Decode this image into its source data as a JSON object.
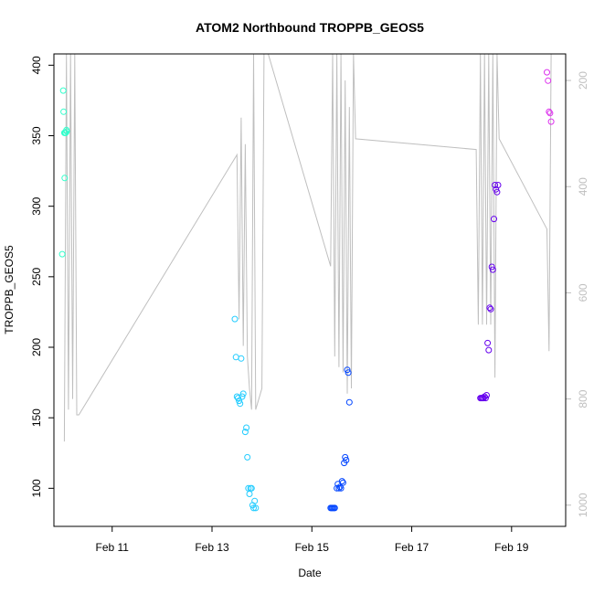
{
  "chart_data": {
    "type": "scatter",
    "title": "ATOM2 Northbound TROPPB_GEOS5",
    "xlabel": "Date",
    "ylabel": "TROPPB_GEOS5",
    "x_unit": "days",
    "xlim": [
      "2016-02-09T20:00",
      "2016-02-20T02:00"
    ],
    "ylim": [
      73,
      408
    ],
    "x_ticks": [
      {
        "x": "2016-02-11",
        "label": "Feb 11"
      },
      {
        "x": "2016-02-13",
        "label": "Feb 13"
      },
      {
        "x": "2016-02-15",
        "label": "Feb 15"
      },
      {
        "x": "2016-02-17",
        "label": "Feb 17"
      },
      {
        "x": "2016-02-19",
        "label": "Feb 19"
      }
    ],
    "y_ticks": [
      100,
      150,
      200,
      250,
      300,
      350,
      400
    ],
    "right_axis": {
      "color": "#bfbfbf",
      "reversed": true,
      "lim": [
        1040,
        150
      ],
      "ticks": [
        200,
        400,
        600,
        800,
        1000
      ]
    },
    "altitude_trace": {
      "color": "#bfbfbf",
      "points": [
        [
          "2016-02-10T01:00",
          880
        ],
        [
          "2016-02-10T02:00",
          150
        ],
        [
          "2016-02-10T03:00",
          820
        ],
        [
          "2016-02-10T04:00",
          150
        ],
        [
          "2016-02-10T05:00",
          800
        ],
        [
          "2016-02-10T06:00",
          150
        ],
        [
          "2016-02-10T07:00",
          830
        ],
        [
          "2016-02-10T08:00",
          830
        ],
        [
          "2016-02-13T12:00",
          340
        ],
        [
          "2016-02-13T13:00",
          650
        ],
        [
          "2016-02-13T14:00",
          270
        ],
        [
          "2016-02-13T15:00",
          700
        ],
        [
          "2016-02-13T16:00",
          320
        ],
        [
          "2016-02-13T17:00",
          720
        ],
        [
          "2016-02-13T18:00",
          780
        ],
        [
          "2016-02-13T19:00",
          820
        ],
        [
          "2016-02-13T20:00",
          150
        ],
        [
          "2016-02-13T21:00",
          820
        ],
        [
          "2016-02-14T00:00",
          780
        ],
        [
          "2016-02-14T01:00",
          150
        ],
        [
          "2016-02-14T03:00",
          150
        ],
        [
          "2016-02-15T09:00",
          550
        ],
        [
          "2016-02-15T10:00",
          150
        ],
        [
          "2016-02-15T11:00",
          720
        ],
        [
          "2016-02-15T12:00",
          150
        ],
        [
          "2016-02-15T13:00",
          740
        ],
        [
          "2016-02-15T14:00",
          150
        ],
        [
          "2016-02-15T15:00",
          750
        ],
        [
          "2016-02-15T16:00",
          200
        ],
        [
          "2016-02-15T17:00",
          790
        ],
        [
          "2016-02-15T18:00",
          250
        ],
        [
          "2016-02-15T19:00",
          780
        ],
        [
          "2016-02-15T20:00",
          150
        ],
        [
          "2016-02-15T21:00",
          310
        ],
        [
          "2016-02-18T07:00",
          330
        ],
        [
          "2016-02-18T08:00",
          660
        ],
        [
          "2016-02-18T09:00",
          150
        ],
        [
          "2016-02-18T10:00",
          660
        ],
        [
          "2016-02-18T11:00",
          150
        ],
        [
          "2016-02-18T12:00",
          660
        ],
        [
          "2016-02-18T13:00",
          150
        ],
        [
          "2016-02-18T14:00",
          660
        ],
        [
          "2016-02-18T15:00",
          150
        ],
        [
          "2016-02-18T16:00",
          760
        ],
        [
          "2016-02-18T17:00",
          150
        ],
        [
          "2016-02-18T18:00",
          310
        ],
        [
          "2016-02-19T17:00",
          480
        ],
        [
          "2016-02-19T18:00",
          710
        ],
        [
          "2016-02-19T19:00",
          150
        ]
      ]
    },
    "series": [
      {
        "color": "#33ffcc",
        "points": [
          [
            "2016-02-10T00:00",
            266
          ],
          [
            "2016-02-10T00:30",
            382
          ],
          [
            "2016-02-10T00:40",
            367
          ],
          [
            "2016-02-10T01:00",
            352
          ],
          [
            "2016-02-10T01:10",
            320
          ],
          [
            "2016-02-10T01:20",
            352
          ],
          [
            "2016-02-10T01:30",
            352
          ],
          [
            "2016-02-10T01:40",
            352
          ],
          [
            "2016-02-10T02:00",
            354
          ],
          [
            "2016-02-10T02:10",
            353
          ]
        ]
      },
      {
        "color": "#22ccff",
        "points": [
          [
            "2016-02-13T11:00",
            220
          ],
          [
            "2016-02-13T11:30",
            193
          ],
          [
            "2016-02-13T12:00",
            165
          ],
          [
            "2016-02-13T12:30",
            164
          ],
          [
            "2016-02-13T13:00",
            162
          ],
          [
            "2016-02-13T13:30",
            160
          ],
          [
            "2016-02-13T14:00",
            192
          ],
          [
            "2016-02-13T14:30",
            165
          ],
          [
            "2016-02-13T15:00",
            167
          ],
          [
            "2016-02-13T16:00",
            140
          ],
          [
            "2016-02-13T16:30",
            143
          ],
          [
            "2016-02-13T17:00",
            122
          ],
          [
            "2016-02-13T17:30",
            100
          ],
          [
            "2016-02-13T18:00",
            96
          ],
          [
            "2016-02-13T18:30",
            100
          ],
          [
            "2016-02-13T19:00",
            100
          ],
          [
            "2016-02-13T19:30",
            88
          ],
          [
            "2016-02-13T20:00",
            86
          ],
          [
            "2016-02-13T20:30",
            91
          ],
          [
            "2016-02-13T21:00",
            86
          ]
        ]
      },
      {
        "color": "#0044ff",
        "points": [
          [
            "2016-02-15T09:00",
            86
          ],
          [
            "2016-02-15T09:30",
            86
          ],
          [
            "2016-02-15T10:00",
            86
          ],
          [
            "2016-02-15T10:30",
            86
          ],
          [
            "2016-02-15T11:00",
            86
          ],
          [
            "2016-02-15T12:00",
            100
          ],
          [
            "2016-02-15T12:30",
            103
          ],
          [
            "2016-02-15T13:00",
            100
          ],
          [
            "2016-02-15T13:30",
            101
          ],
          [
            "2016-02-15T14:00",
            100
          ],
          [
            "2016-02-15T14:30",
            105
          ],
          [
            "2016-02-15T15:00",
            104
          ],
          [
            "2016-02-15T15:30",
            118
          ],
          [
            "2016-02-15T16:00",
            122
          ],
          [
            "2016-02-15T16:30",
            120
          ],
          [
            "2016-02-15T17:00",
            184
          ],
          [
            "2016-02-15T17:30",
            182
          ],
          [
            "2016-02-15T18:00",
            161
          ]
        ]
      },
      {
        "color": "#6600ee",
        "points": [
          [
            "2016-02-18T09:00",
            164
          ],
          [
            "2016-02-18T09:30",
            164
          ],
          [
            "2016-02-18T10:00",
            164
          ],
          [
            "2016-02-18T10:30",
            164
          ],
          [
            "2016-02-18T11:00",
            165
          ],
          [
            "2016-02-18T11:30",
            164
          ],
          [
            "2016-02-18T12:00",
            166
          ],
          [
            "2016-02-18T12:30",
            203
          ],
          [
            "2016-02-18T13:00",
            198
          ],
          [
            "2016-02-18T13:30",
            228
          ],
          [
            "2016-02-18T14:00",
            227
          ],
          [
            "2016-02-18T14:30",
            257
          ],
          [
            "2016-02-18T15:00",
            255
          ],
          [
            "2016-02-18T15:30",
            291
          ],
          [
            "2016-02-18T16:00",
            315
          ],
          [
            "2016-02-18T16:30",
            312
          ],
          [
            "2016-02-18T17:00",
            310
          ],
          [
            "2016-02-18T17:30",
            315
          ]
        ]
      },
      {
        "color": "#dd33ee",
        "points": [
          [
            "2016-02-19T17:00",
            395
          ],
          [
            "2016-02-19T17:30",
            389
          ],
          [
            "2016-02-19T18:00",
            367
          ],
          [
            "2016-02-19T18:30",
            366
          ],
          [
            "2016-02-19T19:00",
            360
          ]
        ]
      }
    ]
  }
}
